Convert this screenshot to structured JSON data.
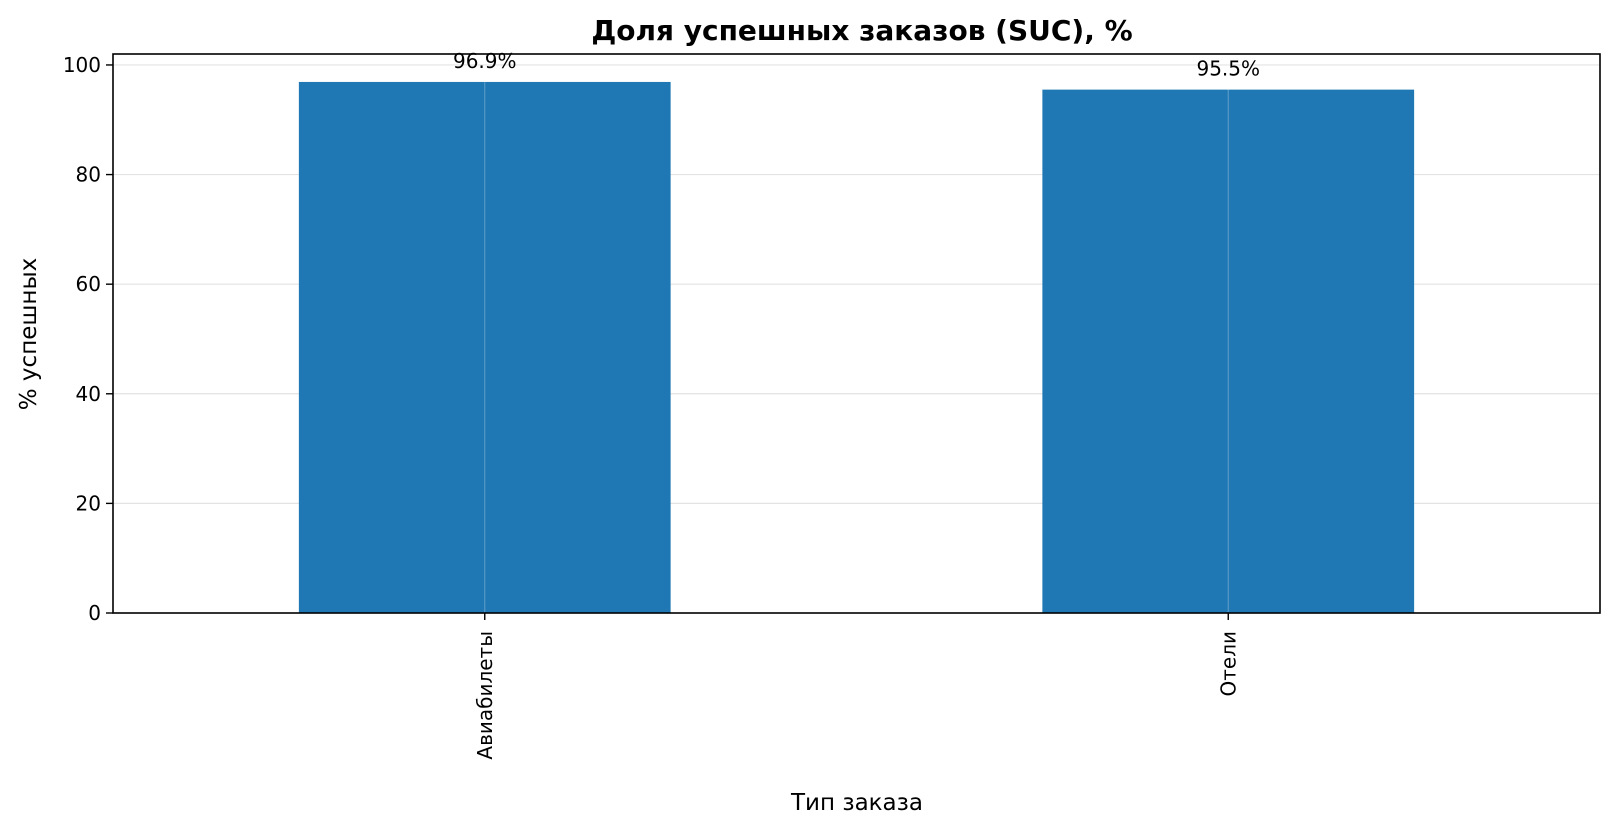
{
  "chart_data": {
    "type": "bar",
    "title": "Доля успешных заказов (SUC), %",
    "xlabel": "Тип заказа",
    "ylabel": "% успешных",
    "categories": [
      "Авиабилеты",
      "Отели"
    ],
    "values": [
      96.9,
      95.5
    ],
    "data_labels": [
      "96.9%",
      "95.5%"
    ],
    "ylim": [
      0,
      102
    ],
    "yticks": [
      0,
      20,
      40,
      60,
      80,
      100
    ],
    "grid": true,
    "legend": "none",
    "bar_color": "#1f77b4"
  }
}
